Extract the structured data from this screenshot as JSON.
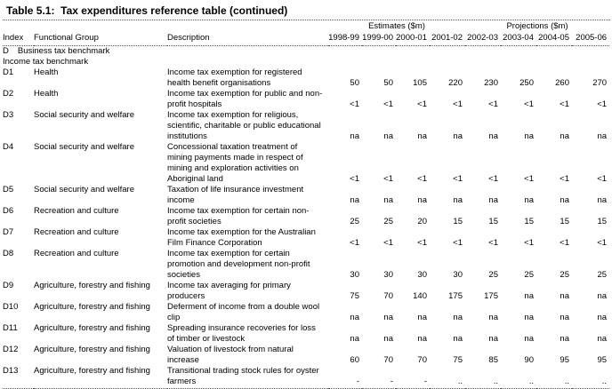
{
  "title": "Table 5.1:  Tax expenditures reference table (continued)",
  "table": {
    "group_headers": {
      "estimates": "Estimates ($m)",
      "projections": "Projections ($m)"
    },
    "columns": {
      "index": "Index",
      "group": "Functional Group",
      "description": "Description"
    },
    "years": [
      "1998-99",
      "1999-00",
      "2000-01",
      "2001-02",
      "2002-03",
      "2003-04",
      "2004-05",
      "2005-06"
    ],
    "sections": [
      {
        "index": "D",
        "label": "Business tax benchmark"
      },
      {
        "index": "",
        "label": "Income tax benchmark"
      }
    ],
    "rows": [
      {
        "index": "D1",
        "group": "Health",
        "description": "Income tax exemption for registered health benefit organisations",
        "values": [
          "50",
          "50",
          "105",
          "220",
          "230",
          "250",
          "260",
          "270"
        ]
      },
      {
        "index": "D2",
        "group": "Health",
        "description": "Income tax exemption for public and non-profit hospitals",
        "values": [
          "<1",
          "<1",
          "<1",
          "<1",
          "<1",
          "<1",
          "<1",
          "<1"
        ]
      },
      {
        "index": "D3",
        "group": "Social security and welfare",
        "description": "Income tax exemption for religious, scientific, charitable or public educational institutions",
        "values": [
          "na",
          "na",
          "na",
          "na",
          "na",
          "na",
          "na",
          "na"
        ]
      },
      {
        "index": "D4",
        "group": "Social security and welfare",
        "description": "Concessional taxation treatment of mining payments made in respect of mining and exploration activities on Aboriginal land",
        "values": [
          "<1",
          "<1",
          "<1",
          "<1",
          "<1",
          "<1",
          "<1",
          "<1"
        ]
      },
      {
        "index": "D5",
        "group": "Social security and welfare",
        "description": "Taxation of life insurance investment income",
        "values": [
          "na",
          "na",
          "na",
          "na",
          "na",
          "na",
          "na",
          "na"
        ]
      },
      {
        "index": "D6",
        "group": "Recreation and culture",
        "description": "Income tax exemption for certain non-profit societies",
        "values": [
          "25",
          "25",
          "20",
          "15",
          "15",
          "15",
          "15",
          "15"
        ]
      },
      {
        "index": "D7",
        "group": "Recreation and culture",
        "description": "Income tax exemption for the Australian Film Finance Corporation",
        "values": [
          "<1",
          "<1",
          "<1",
          "<1",
          "<1",
          "<1",
          "<1",
          "<1"
        ]
      },
      {
        "index": "D8",
        "group": "Recreation and culture",
        "description": "Income tax exemption for certain promotion and development non-profit societies",
        "values": [
          "30",
          "30",
          "30",
          "30",
          "25",
          "25",
          "25",
          "25"
        ]
      },
      {
        "index": "D9",
        "group": "Agriculture, forestry and fishing",
        "description": "Income tax averaging for primary producers",
        "values": [
          "75",
          "70",
          "140",
          "175",
          "175",
          "na",
          "na",
          "na"
        ]
      },
      {
        "index": "D10",
        "group": "Agriculture, forestry and fishing",
        "description": "Deferment of income from a double wool clip",
        "values": [
          "na",
          "na",
          "na",
          "na",
          "na",
          "na",
          "na",
          "na"
        ]
      },
      {
        "index": "D11",
        "group": "Agriculture, forestry and fishing",
        "description": "Spreading insurance recoveries for loss of timber or livestock",
        "values": [
          "na",
          "na",
          "na",
          "na",
          "na",
          "na",
          "na",
          "na"
        ]
      },
      {
        "index": "D12",
        "group": "Agriculture, forestry and fishing",
        "description": "Valuation of livestock from natural increase",
        "values": [
          "60",
          "70",
          "70",
          "75",
          "85",
          "90",
          "95",
          "95"
        ]
      },
      {
        "index": "D13",
        "group": "Agriculture, forestry and fishing",
        "description": "Transitional trading stock rules for oyster farmers",
        "values": [
          "-",
          "-",
          "-",
          "..",
          "..",
          "..",
          "..",
          ".."
        ]
      }
    ]
  }
}
